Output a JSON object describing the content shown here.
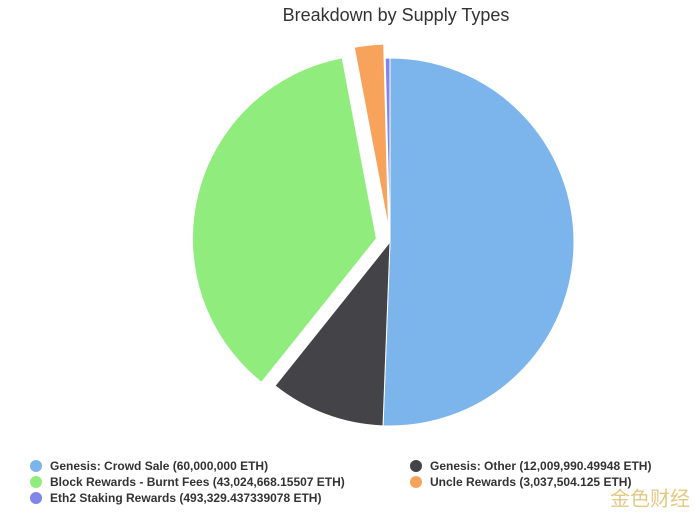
{
  "chart_data": {
    "type": "pie",
    "title": "Breakdown by Supply Types",
    "series": [
      {
        "name": "Genesis: Crowd Sale (60,000,000 ETH)",
        "color": "#7cb5ec",
        "values": [
          60000000
        ],
        "sliced": false
      },
      {
        "name": "Genesis: Other (12,009,990.49948 ETH)",
        "color": "#434348",
        "values": [
          12009990.49948
        ],
        "sliced": false
      },
      {
        "name": "Block Rewards - Burnt Fees (43,024,668.15507 ETH)",
        "color": "#90ed7d",
        "values": [
          43024668.15507
        ],
        "sliced": true
      },
      {
        "name": "Uncle Rewards (3,037,504.125 ETH)",
        "color": "#f7a35c",
        "values": [
          3037504.125
        ],
        "sliced": true
      },
      {
        "name": "Eth2 Staking Rewards (493,329.437339078 ETH)",
        "color": "#8085e9",
        "values": [
          493329.437339078
        ],
        "sliced": false
      }
    ],
    "legend": "bottom"
  },
  "watermark": "金色财经"
}
